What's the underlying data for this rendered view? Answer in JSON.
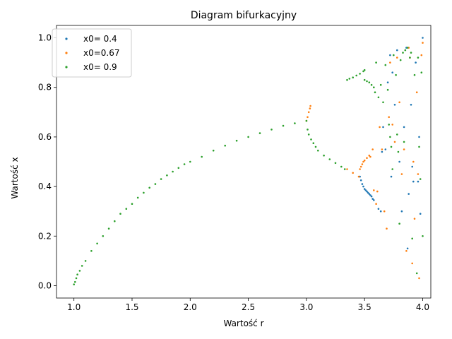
{
  "chart_data": {
    "type": "scatter",
    "title": "Diagram bifurkacyjny",
    "xlabel": "Wartość r",
    "ylabel": "Wartość x",
    "xlim": [
      0.85,
      4.07
    ],
    "ylim": [
      -0.05,
      1.05
    ],
    "xticks": [
      1.0,
      1.5,
      2.0,
      2.5,
      3.0,
      3.5,
      4.0
    ],
    "xtick_labels": [
      "1.0",
      "1.5",
      "2.0",
      "2.5",
      "3.0",
      "3.5",
      "4.0"
    ],
    "yticks": [
      0.0,
      0.2,
      0.4,
      0.6,
      0.8,
      1.0
    ],
    "ytick_labels": [
      "0.0",
      "0.2",
      "0.4",
      "0.6",
      "0.8",
      "1.0"
    ],
    "grid": false,
    "legend_position": "top-left",
    "series": [
      {
        "name": "x0= 0.4",
        "color": "#1f77b4",
        "points": [
          [
            3.46,
            0.44
          ],
          [
            3.47,
            0.425
          ],
          [
            3.48,
            0.41
          ],
          [
            3.49,
            0.4
          ],
          [
            3.5,
            0.39
          ],
          [
            3.51,
            0.385
          ],
          [
            3.52,
            0.38
          ],
          [
            3.53,
            0.375
          ],
          [
            3.54,
            0.37
          ],
          [
            3.55,
            0.365
          ],
          [
            3.56,
            0.36
          ],
          [
            3.57,
            0.35
          ],
          [
            3.58,
            0.345
          ],
          [
            3.62,
            0.31
          ],
          [
            3.64,
            0.3
          ],
          [
            3.65,
            0.54
          ],
          [
            3.66,
            0.64
          ],
          [
            3.68,
            0.55
          ],
          [
            3.7,
            0.82
          ],
          [
            3.72,
            0.93
          ],
          [
            3.73,
            0.44
          ],
          [
            3.74,
            0.86
          ],
          [
            3.76,
            0.73
          ],
          [
            3.78,
            0.95
          ],
          [
            3.8,
            0.5
          ],
          [
            3.82,
            0.3
          ],
          [
            3.84,
            0.64
          ],
          [
            3.86,
            0.96
          ],
          [
            3.88,
            0.37
          ],
          [
            3.9,
            0.73
          ],
          [
            3.92,
            0.42
          ],
          [
            3.94,
            0.9
          ],
          [
            3.96,
            0.42
          ],
          [
            3.98,
            0.29
          ],
          [
            4.0,
            1.0
          ],
          [
            3.97,
            0.6
          ],
          [
            3.91,
            0.48
          ],
          [
            3.87,
            0.15
          ]
        ]
      },
      {
        "name": "x0=0.67",
        "color": "#ff7f0e",
        "points": [
          [
            3.0,
            0.665
          ],
          [
            3.01,
            0.68
          ],
          [
            3.02,
            0.7
          ],
          [
            3.03,
            0.715
          ],
          [
            3.035,
            0.725
          ],
          [
            3.35,
            0.47
          ],
          [
            3.4,
            0.455
          ],
          [
            3.45,
            0.44
          ],
          [
            3.46,
            0.47
          ],
          [
            3.47,
            0.48
          ],
          [
            3.48,
            0.49
          ],
          [
            3.49,
            0.5
          ],
          [
            3.5,
            0.505
          ],
          [
            3.52,
            0.515
          ],
          [
            3.54,
            0.525
          ],
          [
            3.55,
            0.52
          ],
          [
            3.57,
            0.55
          ],
          [
            3.58,
            0.385
          ],
          [
            3.6,
            0.33
          ],
          [
            3.61,
            0.38
          ],
          [
            3.63,
            0.64
          ],
          [
            3.65,
            0.55
          ],
          [
            3.67,
            0.3
          ],
          [
            3.69,
            0.23
          ],
          [
            3.71,
            0.68
          ],
          [
            3.72,
            0.9
          ],
          [
            3.74,
            0.65
          ],
          [
            3.76,
            0.58
          ],
          [
            3.78,
            0.92
          ],
          [
            3.8,
            0.74
          ],
          [
            3.82,
            0.45
          ],
          [
            3.84,
            0.55
          ],
          [
            3.86,
            0.14
          ],
          [
            3.88,
            0.96
          ],
          [
            3.89,
            0.92
          ],
          [
            3.91,
            0.09
          ],
          [
            3.93,
            0.27
          ],
          [
            3.95,
            0.78
          ],
          [
            3.97,
            0.03
          ],
          [
            3.99,
            0.93
          ],
          [
            4.0,
            0.98
          ],
          [
            3.96,
            0.45
          ],
          [
            3.92,
            0.5
          ]
        ]
      },
      {
        "name": "x0= 0.9",
        "color": "#2ca02c",
        "points": [
          [
            1.0,
            0.005
          ],
          [
            1.01,
            0.015
          ],
          [
            1.02,
            0.03
          ],
          [
            1.03,
            0.045
          ],
          [
            1.05,
            0.06
          ],
          [
            1.07,
            0.08
          ],
          [
            1.1,
            0.1
          ],
          [
            1.15,
            0.14
          ],
          [
            1.2,
            0.17
          ],
          [
            1.25,
            0.2
          ],
          [
            1.3,
            0.23
          ],
          [
            1.35,
            0.26
          ],
          [
            1.4,
            0.29
          ],
          [
            1.45,
            0.31
          ],
          [
            1.5,
            0.33
          ],
          [
            1.55,
            0.355
          ],
          [
            1.6,
            0.375
          ],
          [
            1.65,
            0.395
          ],
          [
            1.7,
            0.41
          ],
          [
            1.75,
            0.43
          ],
          [
            1.8,
            0.445
          ],
          [
            1.85,
            0.46
          ],
          [
            1.9,
            0.475
          ],
          [
            1.95,
            0.49
          ],
          [
            2.0,
            0.5
          ],
          [
            2.1,
            0.52
          ],
          [
            2.2,
            0.545
          ],
          [
            2.3,
            0.565
          ],
          [
            2.4,
            0.585
          ],
          [
            2.5,
            0.6
          ],
          [
            2.6,
            0.615
          ],
          [
            2.7,
            0.63
          ],
          [
            2.8,
            0.645
          ],
          [
            2.9,
            0.655
          ],
          [
            3.0,
            0.665
          ],
          [
            3.01,
            0.63
          ],
          [
            3.02,
            0.61
          ],
          [
            3.04,
            0.59
          ],
          [
            3.06,
            0.575
          ],
          [
            3.08,
            0.56
          ],
          [
            3.1,
            0.545
          ],
          [
            3.15,
            0.525
          ],
          [
            3.2,
            0.51
          ],
          [
            3.25,
            0.495
          ],
          [
            3.3,
            0.48
          ],
          [
            3.33,
            0.47
          ],
          [
            3.35,
            0.83
          ],
          [
            3.37,
            0.835
          ],
          [
            3.4,
            0.84
          ],
          [
            3.43,
            0.848
          ],
          [
            3.46,
            0.855
          ],
          [
            3.49,
            0.865
          ],
          [
            3.5,
            0.87
          ],
          [
            3.5,
            0.83
          ],
          [
            3.52,
            0.825
          ],
          [
            3.54,
            0.82
          ],
          [
            3.56,
            0.81
          ],
          [
            3.58,
            0.8
          ],
          [
            3.59,
            0.78
          ],
          [
            3.6,
            0.9
          ],
          [
            3.62,
            0.76
          ],
          [
            3.64,
            0.81
          ],
          [
            3.66,
            0.74
          ],
          [
            3.68,
            0.89
          ],
          [
            3.7,
            0.79
          ],
          [
            3.71,
            0.65
          ],
          [
            3.72,
            0.6
          ],
          [
            3.73,
            0.56
          ],
          [
            3.74,
            0.47
          ],
          [
            3.75,
            0.93
          ],
          [
            3.77,
            0.85
          ],
          [
            3.78,
            0.61
          ],
          [
            3.79,
            0.54
          ],
          [
            3.81,
            0.91
          ],
          [
            3.83,
            0.94
          ],
          [
            3.85,
            0.95
          ],
          [
            3.87,
            0.96
          ],
          [
            3.89,
            0.92
          ],
          [
            3.9,
            0.94
          ],
          [
            3.91,
            0.19
          ],
          [
            3.93,
            0.85
          ],
          [
            3.95,
            0.05
          ],
          [
            3.97,
            0.56
          ],
          [
            3.98,
            0.43
          ],
          [
            4.0,
            0.2
          ],
          [
            3.99,
            0.86
          ],
          [
            3.96,
            0.92
          ],
          [
            3.84,
            0.58
          ],
          [
            3.8,
            0.25
          ]
        ]
      }
    ]
  }
}
